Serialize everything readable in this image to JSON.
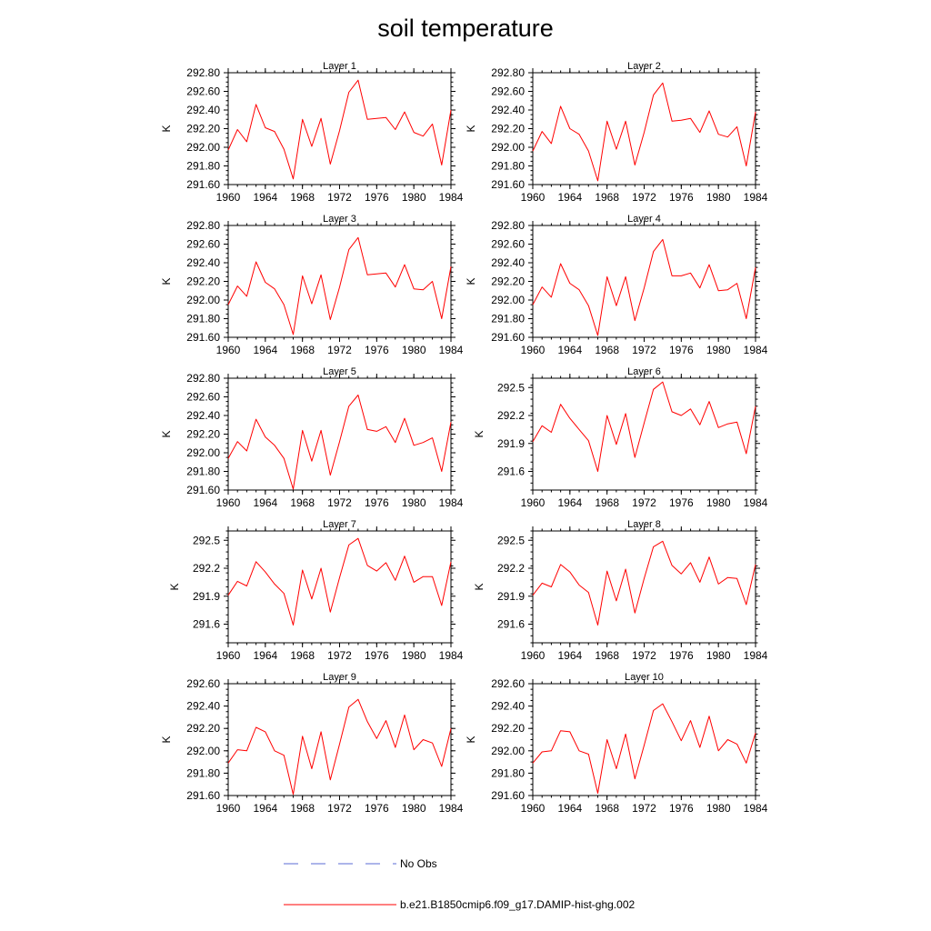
{
  "title": "soil temperature",
  "colors": {
    "model": "#ff0000",
    "obs": "#5b6bd6",
    "axis": "#000000"
  },
  "legend": [
    {
      "label": "No Obs",
      "style": "dashed",
      "color": "#5b6bd6"
    },
    {
      "label": "b.e21.B1850cmip6.f09_g17.DAMIP-hist-ghg.002",
      "style": "solid",
      "color": "#ff0000"
    }
  ],
  "chart_data": [
    {
      "type": "line",
      "title": "Layer 1",
      "ylabel": "K",
      "xlim": [
        1960,
        1984
      ],
      "ylim": [
        291.6,
        292.8
      ],
      "xticks": [
        1960,
        1964,
        1968,
        1972,
        1976,
        1980,
        1984
      ],
      "yticks": [
        "291.60",
        "291.80",
        "292.00",
        "292.20",
        "292.40",
        "292.60",
        "292.80"
      ],
      "x": [
        1960,
        1961,
        1962,
        1963,
        1964,
        1965,
        1966,
        1967,
        1968,
        1969,
        1970,
        1971,
        1972,
        1973,
        1974,
        1975,
        1976,
        1977,
        1978,
        1979,
        1980,
        1981,
        1982,
        1983,
        1984
      ],
      "series": [
        {
          "name": "b.e21.B1850cmip6.f09_g17.DAMIP-hist-ghg.002",
          "values": [
            291.97,
            292.19,
            292.06,
            292.46,
            292.21,
            292.17,
            291.98,
            291.66,
            292.3,
            292.01,
            292.31,
            291.82,
            292.18,
            292.59,
            292.72,
            292.3,
            292.31,
            292.32,
            292.19,
            292.38,
            292.16,
            292.12,
            292.25,
            291.81,
            292.4
          ]
        }
      ]
    },
    {
      "type": "line",
      "title": "Layer 2",
      "ylabel": "K",
      "xlim": [
        1960,
        1984
      ],
      "ylim": [
        291.6,
        292.8
      ],
      "xticks": [
        1960,
        1964,
        1968,
        1972,
        1976,
        1980,
        1984
      ],
      "yticks": [
        "291.60",
        "291.80",
        "292.00",
        "292.20",
        "292.40",
        "292.60",
        "292.80"
      ],
      "x": [
        1960,
        1961,
        1962,
        1963,
        1964,
        1965,
        1966,
        1967,
        1968,
        1969,
        1970,
        1971,
        1972,
        1973,
        1974,
        1975,
        1976,
        1977,
        1978,
        1979,
        1980,
        1981,
        1982,
        1983,
        1984
      ],
      "series": [
        {
          "name": "b.e21.B1850cmip6.f09_g17.DAMIP-hist-ghg.002",
          "values": [
            291.96,
            292.17,
            292.04,
            292.44,
            292.2,
            292.14,
            291.96,
            291.64,
            292.28,
            291.98,
            292.28,
            291.81,
            292.16,
            292.56,
            292.69,
            292.28,
            292.29,
            292.31,
            292.16,
            292.39,
            292.14,
            292.11,
            292.22,
            291.8,
            292.38
          ]
        }
      ]
    },
    {
      "type": "line",
      "title": "Layer 3",
      "ylabel": "K",
      "xlim": [
        1960,
        1984
      ],
      "ylim": [
        291.6,
        292.8
      ],
      "xticks": [
        1960,
        1964,
        1968,
        1972,
        1976,
        1980,
        1984
      ],
      "yticks": [
        "291.60",
        "291.80",
        "292.00",
        "292.20",
        "292.40",
        "292.60",
        "292.80"
      ],
      "x": [
        1960,
        1961,
        1962,
        1963,
        1964,
        1965,
        1966,
        1967,
        1968,
        1969,
        1970,
        1971,
        1972,
        1973,
        1974,
        1975,
        1976,
        1977,
        1978,
        1979,
        1980,
        1981,
        1982,
        1983,
        1984
      ],
      "series": [
        {
          "name": "b.e21.B1850cmip6.f09_g17.DAMIP-hist-ghg.002",
          "values": [
            291.95,
            292.15,
            292.04,
            292.41,
            292.19,
            292.12,
            291.95,
            291.63,
            292.26,
            291.96,
            292.27,
            291.79,
            292.14,
            292.54,
            292.67,
            292.27,
            292.28,
            292.29,
            292.14,
            292.38,
            292.12,
            292.11,
            292.2,
            291.8,
            292.36
          ]
        }
      ]
    },
    {
      "type": "line",
      "title": "Layer 4",
      "ylabel": "K",
      "xlim": [
        1960,
        1984
      ],
      "ylim": [
        291.6,
        292.8
      ],
      "xticks": [
        1960,
        1964,
        1968,
        1972,
        1976,
        1980,
        1984
      ],
      "yticks": [
        "291.60",
        "291.80",
        "292.00",
        "292.20",
        "292.40",
        "292.60",
        "292.80"
      ],
      "x": [
        1960,
        1961,
        1962,
        1963,
        1964,
        1965,
        1966,
        1967,
        1968,
        1969,
        1970,
        1971,
        1972,
        1973,
        1974,
        1975,
        1976,
        1977,
        1978,
        1979,
        1980,
        1981,
        1982,
        1983,
        1984
      ],
      "series": [
        {
          "name": "b.e21.B1850cmip6.f09_g17.DAMIP-hist-ghg.002",
          "values": [
            291.95,
            292.14,
            292.03,
            292.39,
            292.18,
            292.11,
            291.94,
            291.62,
            292.25,
            291.94,
            292.25,
            291.78,
            292.13,
            292.52,
            292.65,
            292.26,
            292.26,
            292.29,
            292.13,
            292.38,
            292.1,
            292.11,
            292.18,
            291.8,
            292.35
          ]
        }
      ]
    },
    {
      "type": "line",
      "title": "Layer 5",
      "ylabel": "K",
      "xlim": [
        1960,
        1984
      ],
      "ylim": [
        291.6,
        292.8
      ],
      "xticks": [
        1960,
        1964,
        1968,
        1972,
        1976,
        1980,
        1984
      ],
      "yticks": [
        "291.60",
        "291.80",
        "292.00",
        "292.20",
        "292.40",
        "292.60",
        "292.80"
      ],
      "x": [
        1960,
        1961,
        1962,
        1963,
        1964,
        1965,
        1966,
        1967,
        1968,
        1969,
        1970,
        1971,
        1972,
        1973,
        1974,
        1975,
        1976,
        1977,
        1978,
        1979,
        1980,
        1981,
        1982,
        1983,
        1984
      ],
      "series": [
        {
          "name": "b.e21.B1850cmip6.f09_g17.DAMIP-hist-ghg.002",
          "values": [
            291.94,
            292.12,
            292.02,
            292.36,
            292.17,
            292.08,
            291.94,
            291.61,
            292.24,
            291.91,
            292.24,
            291.76,
            292.12,
            292.5,
            292.62,
            292.25,
            292.23,
            292.28,
            292.11,
            292.37,
            292.08,
            292.11,
            292.16,
            291.8,
            292.33
          ]
        }
      ]
    },
    {
      "type": "line",
      "title": "Layer 6",
      "ylabel": "K",
      "xlim": [
        1960,
        1984
      ],
      "ylim": [
        291.4,
        292.6
      ],
      "xticks": [
        1960,
        1964,
        1968,
        1972,
        1976,
        1980,
        1984
      ],
      "yticks": [
        "291.6",
        "291.9",
        "292.2",
        "292.5"
      ],
      "x": [
        1960,
        1961,
        1962,
        1963,
        1964,
        1965,
        1966,
        1967,
        1968,
        1969,
        1970,
        1971,
        1972,
        1973,
        1974,
        1975,
        1976,
        1977,
        1978,
        1979,
        1980,
        1981,
        1982,
        1983,
        1984
      ],
      "series": [
        {
          "name": "b.e21.B1850cmip6.f09_g17.DAMIP-hist-ghg.002",
          "values": [
            291.92,
            292.09,
            292.02,
            292.32,
            292.17,
            292.05,
            291.93,
            291.6,
            292.2,
            291.89,
            292.22,
            291.75,
            292.12,
            292.48,
            292.56,
            292.24,
            292.2,
            292.27,
            292.1,
            292.35,
            292.07,
            292.11,
            292.13,
            291.79,
            292.3
          ]
        }
      ]
    },
    {
      "type": "line",
      "title": "Layer 7",
      "ylabel": "K",
      "xlim": [
        1960,
        1984
      ],
      "ylim": [
        291.4,
        292.6
      ],
      "xticks": [
        1960,
        1964,
        1968,
        1972,
        1976,
        1980,
        1984
      ],
      "yticks": [
        "291.6",
        "291.9",
        "292.2",
        "292.5"
      ],
      "x": [
        1960,
        1961,
        1962,
        1963,
        1964,
        1965,
        1966,
        1967,
        1968,
        1969,
        1970,
        1971,
        1972,
        1973,
        1974,
        1975,
        1976,
        1977,
        1978,
        1979,
        1980,
        1981,
        1982,
        1983,
        1984
      ],
      "series": [
        {
          "name": "b.e21.B1850cmip6.f09_g17.DAMIP-hist-ghg.002",
          "values": [
            291.91,
            292.06,
            292.01,
            292.27,
            292.16,
            292.03,
            291.93,
            291.59,
            292.18,
            291.87,
            292.2,
            291.73,
            292.1,
            292.45,
            292.52,
            292.23,
            292.17,
            292.26,
            292.07,
            292.33,
            292.05,
            292.11,
            292.11,
            291.8,
            292.27
          ]
        }
      ]
    },
    {
      "type": "line",
      "title": "Layer 8",
      "ylabel": "K",
      "xlim": [
        1960,
        1984
      ],
      "ylim": [
        291.4,
        292.6
      ],
      "xticks": [
        1960,
        1964,
        1968,
        1972,
        1976,
        1980,
        1984
      ],
      "yticks": [
        "291.6",
        "291.9",
        "292.2",
        "292.5"
      ],
      "x": [
        1960,
        1961,
        1962,
        1963,
        1964,
        1965,
        1966,
        1967,
        1968,
        1969,
        1970,
        1971,
        1972,
        1973,
        1974,
        1975,
        1976,
        1977,
        1978,
        1979,
        1980,
        1981,
        1982,
        1983,
        1984
      ],
      "series": [
        {
          "name": "b.e21.B1850cmip6.f09_g17.DAMIP-hist-ghg.002",
          "values": [
            291.91,
            292.04,
            292.0,
            292.24,
            292.16,
            292.02,
            291.94,
            291.59,
            292.17,
            291.85,
            292.19,
            291.72,
            292.09,
            292.43,
            292.49,
            292.23,
            292.14,
            292.26,
            292.05,
            292.32,
            292.03,
            292.1,
            292.09,
            291.81,
            292.24
          ]
        }
      ]
    },
    {
      "type": "line",
      "title": "Layer 9",
      "ylabel": "K",
      "xlim": [
        1960,
        1984
      ],
      "ylim": [
        291.6,
        292.6
      ],
      "xticks": [
        1960,
        1964,
        1968,
        1972,
        1976,
        1980,
        1984
      ],
      "yticks": [
        "291.60",
        "291.80",
        "292.00",
        "292.20",
        "292.40",
        "292.60"
      ],
      "x": [
        1960,
        1961,
        1962,
        1963,
        1964,
        1965,
        1966,
        1967,
        1968,
        1969,
        1970,
        1971,
        1972,
        1973,
        1974,
        1975,
        1976,
        1977,
        1978,
        1979,
        1980,
        1981,
        1982,
        1983,
        1984
      ],
      "series": [
        {
          "name": "b.e21.B1850cmip6.f09_g17.DAMIP-hist-ghg.002",
          "values": [
            291.89,
            292.01,
            292.0,
            292.21,
            292.17,
            292.0,
            291.96,
            291.61,
            292.13,
            291.84,
            292.17,
            291.74,
            292.06,
            292.39,
            292.46,
            292.26,
            292.11,
            292.27,
            292.03,
            292.32,
            292.01,
            292.1,
            292.07,
            291.86,
            292.2
          ]
        }
      ]
    },
    {
      "type": "line",
      "title": "Layer 10",
      "ylabel": "K",
      "xlim": [
        1960,
        1984
      ],
      "ylim": [
        291.6,
        292.6
      ],
      "xticks": [
        1960,
        1964,
        1968,
        1972,
        1976,
        1980,
        1984
      ],
      "yticks": [
        "291.60",
        "291.80",
        "292.00",
        "292.20",
        "292.40",
        "292.60"
      ],
      "x": [
        1960,
        1961,
        1962,
        1963,
        1964,
        1965,
        1966,
        1967,
        1968,
        1969,
        1970,
        1971,
        1972,
        1973,
        1974,
        1975,
        1976,
        1977,
        1978,
        1979,
        1980,
        1981,
        1982,
        1983,
        1984
      ],
      "series": [
        {
          "name": "b.e21.B1850cmip6.f09_g17.DAMIP-hist-ghg.002",
          "values": [
            291.89,
            291.99,
            292.0,
            292.18,
            292.17,
            292.0,
            291.97,
            291.62,
            292.1,
            291.84,
            292.15,
            291.75,
            292.05,
            292.36,
            292.42,
            292.26,
            292.09,
            292.27,
            292.03,
            292.31,
            292.0,
            292.1,
            292.06,
            291.89,
            292.16
          ]
        }
      ]
    }
  ]
}
